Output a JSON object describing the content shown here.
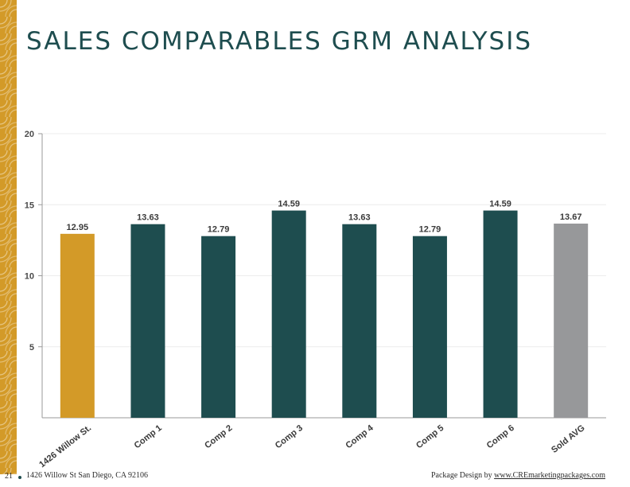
{
  "page": {
    "title": "SALES COMPARABLES GRM ANALYSIS",
    "page_number": "21",
    "address": "1426 Willow St San Diego, CA 92106",
    "credit_prefix": "Package Design by ",
    "credit_link": "www.CREmarketingpackages.com"
  },
  "colors": {
    "subject": "#d39a28",
    "comp": "#1e4d4f",
    "average": "#97989a",
    "title": "#1e4d4f"
  },
  "chart_data": {
    "type": "bar",
    "title": "",
    "xlabel": "",
    "ylabel": "",
    "categories": [
      "1426 Willow St.",
      "Comp 1",
      "Comp 2",
      "Comp 3",
      "Comp 4",
      "Comp 5",
      "Comp 6",
      "Sold AVG"
    ],
    "values": [
      12.95,
      13.63,
      12.79,
      14.59,
      13.63,
      12.79,
      14.59,
      13.67
    ],
    "value_labels": [
      "12.95",
      "13.63",
      "12.79",
      "14.59",
      "13.63",
      "12.79",
      "14.59",
      "13.67"
    ],
    "bar_colors": [
      "#d39a28",
      "#1e4d4f",
      "#1e4d4f",
      "#1e4d4f",
      "#1e4d4f",
      "#1e4d4f",
      "#1e4d4f",
      "#97989a"
    ],
    "ylim": [
      0,
      20
    ],
    "yticks": [
      5,
      10,
      15,
      20
    ],
    "ytick_labels": [
      "5",
      "10",
      "15",
      "20"
    ],
    "grid": true,
    "legend": "none"
  }
}
